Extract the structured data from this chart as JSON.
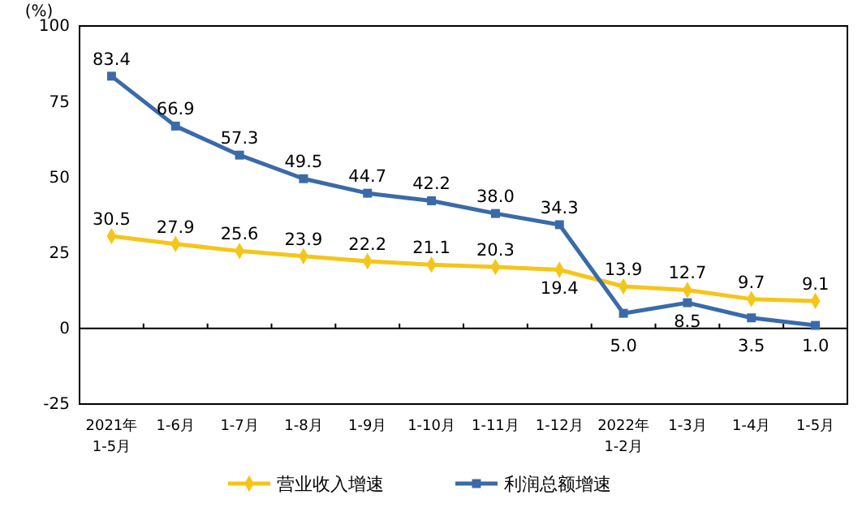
{
  "chart_data": {
    "type": "line",
    "ylabel": "(%)",
    "categories": [
      "2021年\n1-5月",
      "1-6月",
      "1-7月",
      "1-8月",
      "1-9月",
      "1-10月",
      "1-11月",
      "1-12月",
      "2022年\n1-2月",
      "1-3月",
      "1-4月",
      "1-5月"
    ],
    "series": [
      {
        "name": "营业收入增速",
        "color": "#f5c518",
        "marker": "diamond",
        "values": [
          30.5,
          27.9,
          25.6,
          23.9,
          22.2,
          21.1,
          20.3,
          19.4,
          13.9,
          12.7,
          9.7,
          9.1
        ],
        "value_labels": [
          "30.5",
          "27.9",
          "25.6",
          "23.9",
          "22.2",
          "21.1",
          "20.3",
          "19.4",
          "13.9",
          "12.7",
          "9.7",
          "9.1"
        ]
      },
      {
        "name": "利润总额增速",
        "color": "#3a6aa8",
        "marker": "square",
        "values": [
          83.4,
          66.9,
          57.3,
          49.5,
          44.7,
          42.2,
          38.0,
          34.3,
          5.0,
          8.5,
          3.5,
          1.0
        ],
        "value_labels": [
          "83.4",
          "66.9",
          "57.3",
          "49.5",
          "44.7",
          "42.2",
          "38.0",
          "34.3",
          "5.0",
          "8.5",
          "3.5",
          "1.0"
        ]
      }
    ],
    "ylim": [
      -25,
      100
    ],
    "yticks": [
      -25,
      0,
      25,
      50,
      75,
      100
    ],
    "legend": "bottom",
    "line_style": "solid"
  }
}
